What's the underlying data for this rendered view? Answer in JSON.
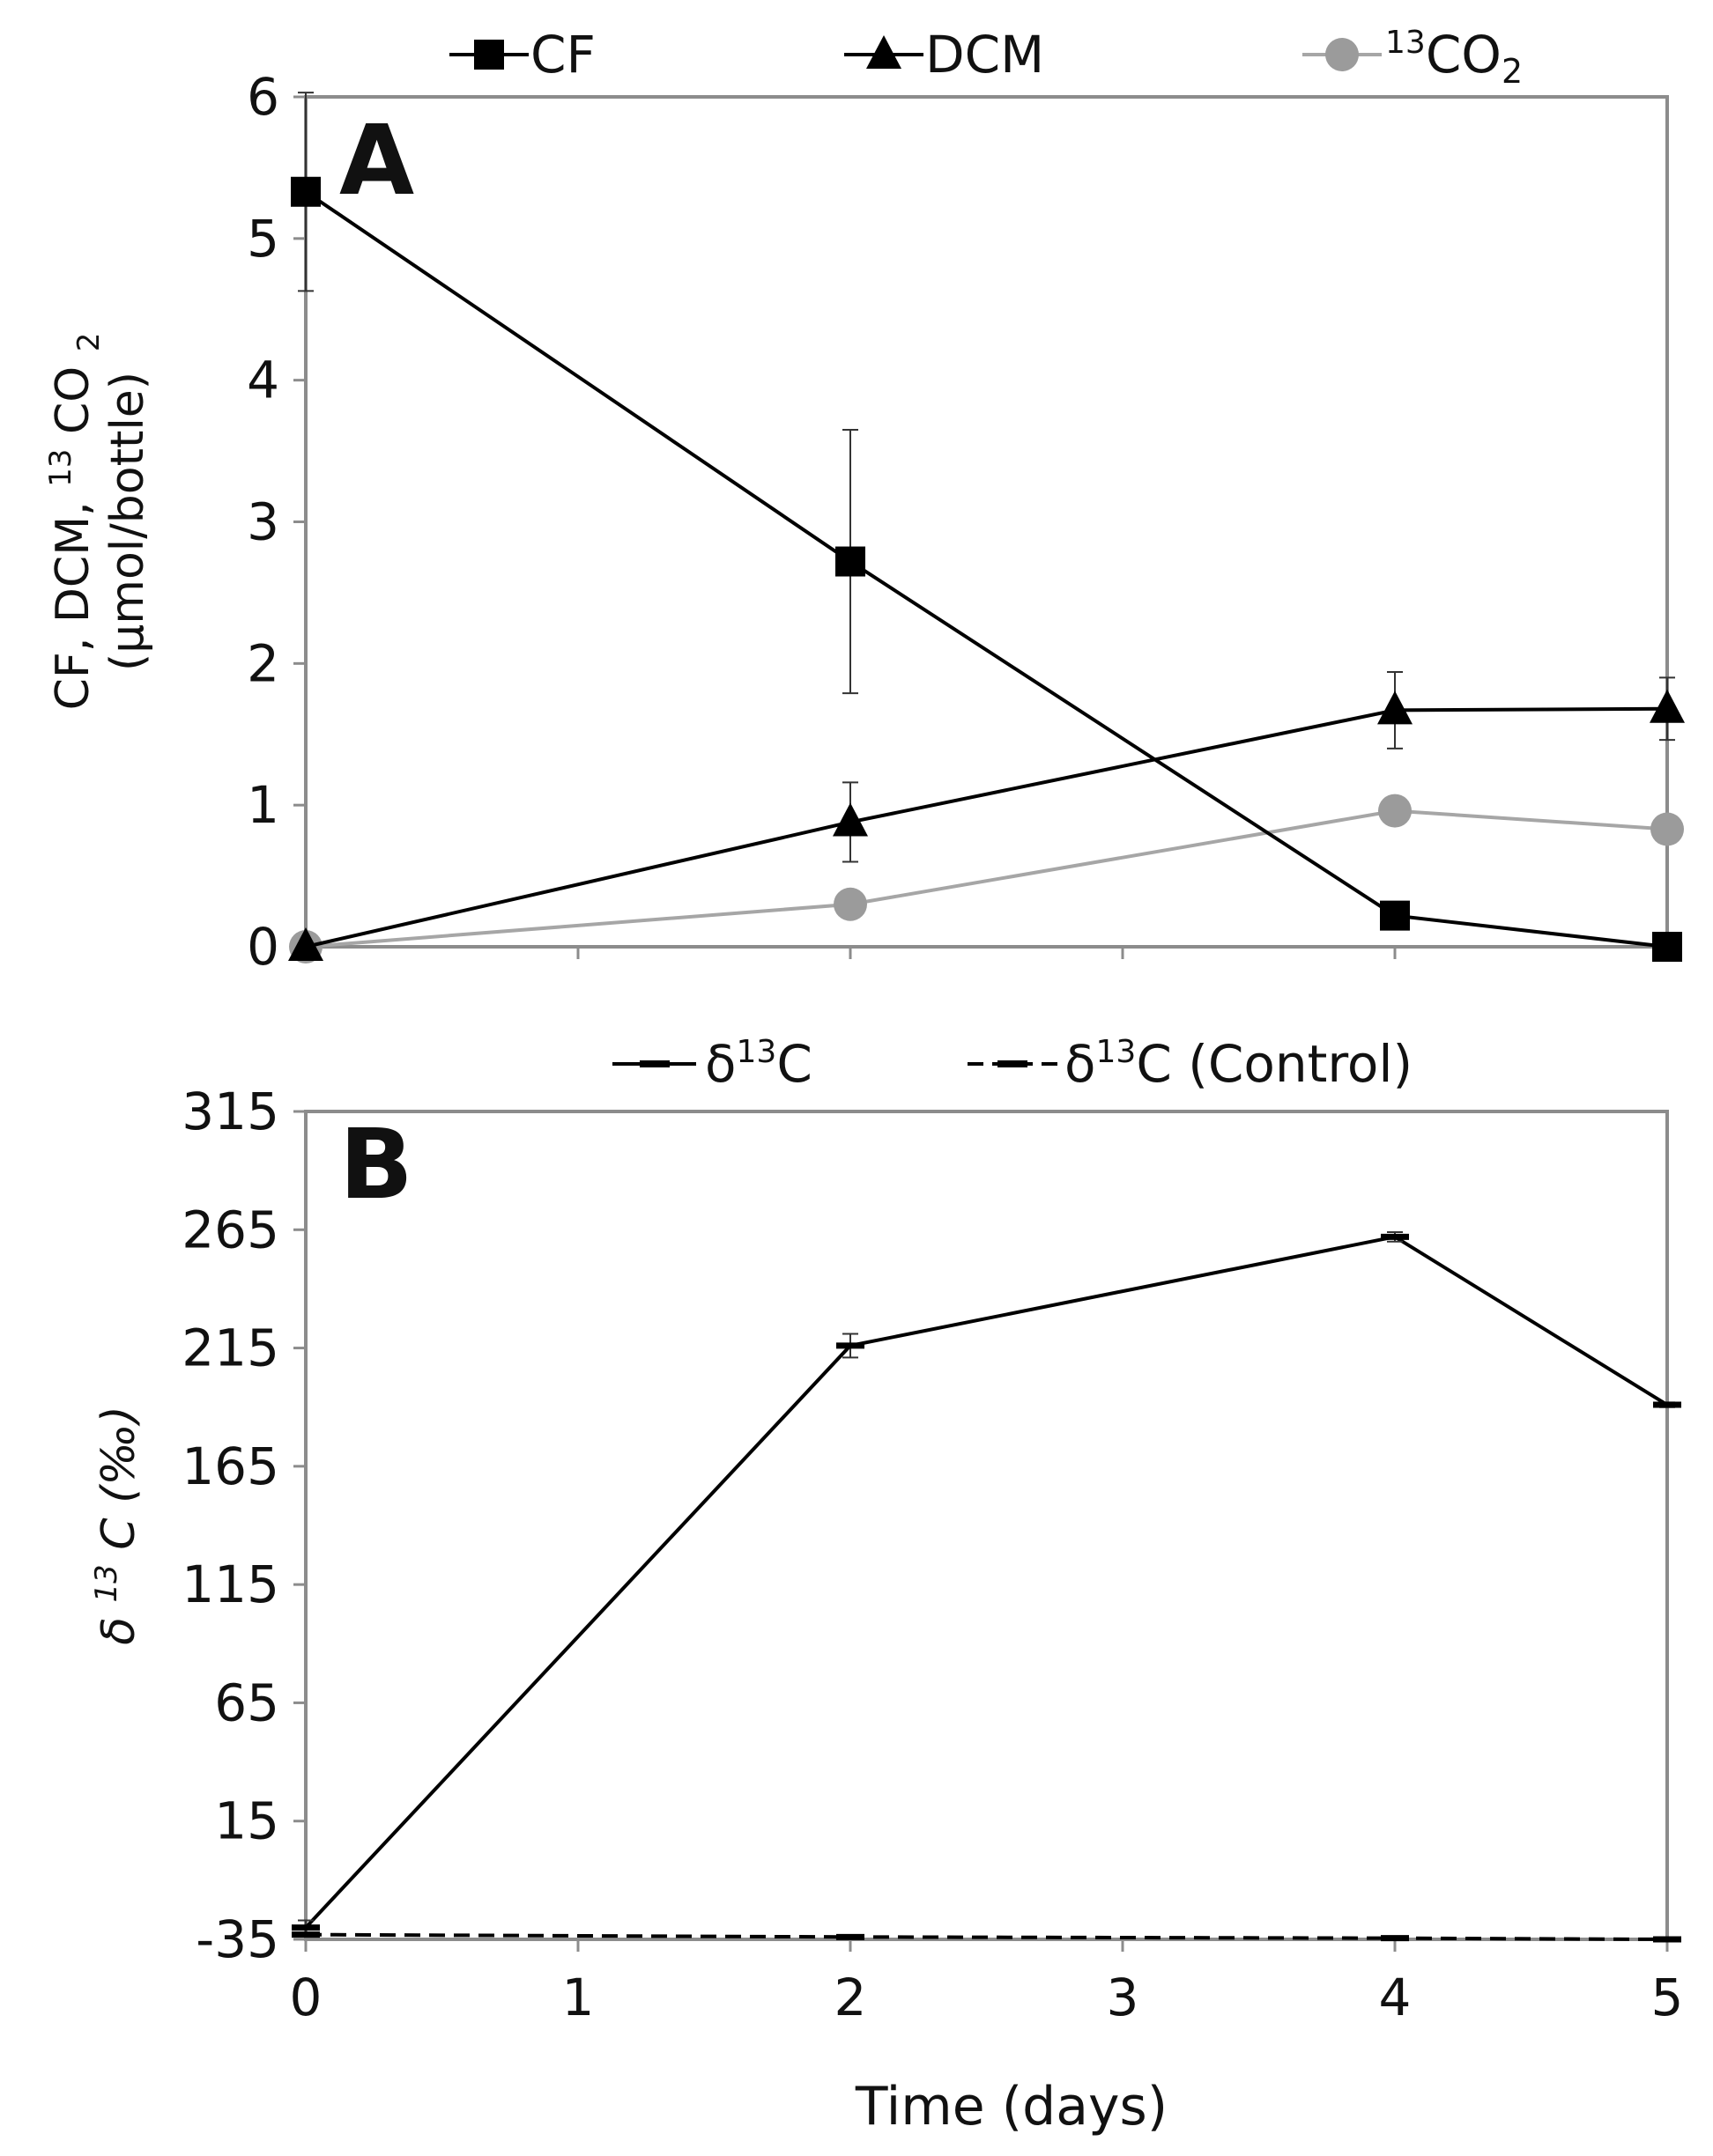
{
  "chart_data": [
    {
      "panel": "A",
      "type": "line",
      "x": [
        0,
        2,
        4,
        5
      ],
      "xlim": [
        0,
        5
      ],
      "ylim": [
        0,
        6
      ],
      "yticks": [
        "0",
        "1",
        "2",
        "3",
        "4",
        "5",
        "6"
      ],
      "ylabel_line1": "CF, DCM, ",
      "ylabel_sup": "13",
      "ylabel_line1_end": "CO",
      "ylabel_sub": "2",
      "ylabel_line2": "(µmol/bottle)",
      "legend_position": "top",
      "grid": false,
      "series": [
        {
          "name": "CF",
          "marker": "square",
          "color": "#000000",
          "values": [
            5.33,
            2.72,
            0.22,
            0.0
          ],
          "errors": [
            0.7,
            0.93,
            0.05,
            0.02
          ]
        },
        {
          "name": "DCM",
          "marker": "triangle",
          "color": "#000000",
          "values": [
            0.0,
            0.88,
            1.67,
            1.68
          ],
          "errors": [
            0.0,
            0.28,
            0.27,
            0.22
          ]
        },
        {
          "name_sup": "13",
          "name_main": "CO",
          "name_sub": "2",
          "marker": "circle",
          "color": "#9b9b9b",
          "line_color": "#a6a6a6",
          "values": [
            0.0,
            0.3,
            0.96,
            0.83
          ],
          "errors": [
            0,
            0,
            0,
            0
          ]
        }
      ]
    },
    {
      "panel": "B",
      "type": "line",
      "x": [
        0,
        2,
        4,
        5
      ],
      "xlim": [
        0,
        5
      ],
      "xticks": [
        "0",
        "1",
        "2",
        "3",
        "4",
        "5"
      ],
      "xlabel": "Time (days)",
      "ylim": [
        -35,
        315
      ],
      "yticks": [
        "-35",
        "15",
        "65",
        "115",
        "165",
        "215",
        "265",
        "315"
      ],
      "ylabel_main": "δ",
      "ylabel_sup": "13",
      "ylabel_end": "C (‰)",
      "legend_position": "top",
      "grid": false,
      "series": [
        {
          "name": "δ¹³C",
          "name_main": "δ",
          "name_sup": "13",
          "name_end": "C",
          "style": "solid",
          "color": "#000000",
          "values": [
            -30,
            216,
            262,
            191
          ],
          "errors": [
            3,
            5,
            2,
            1
          ]
        },
        {
          "name": "δ¹³C (Control)",
          "name_main": "δ",
          "name_sup": "13",
          "name_end": "C (Control)",
          "style": "dashed",
          "color": "#000000",
          "values": [
            -33,
            -34,
            -34.5,
            -35
          ],
          "errors": [
            0,
            0,
            0,
            0
          ]
        }
      ]
    }
  ]
}
